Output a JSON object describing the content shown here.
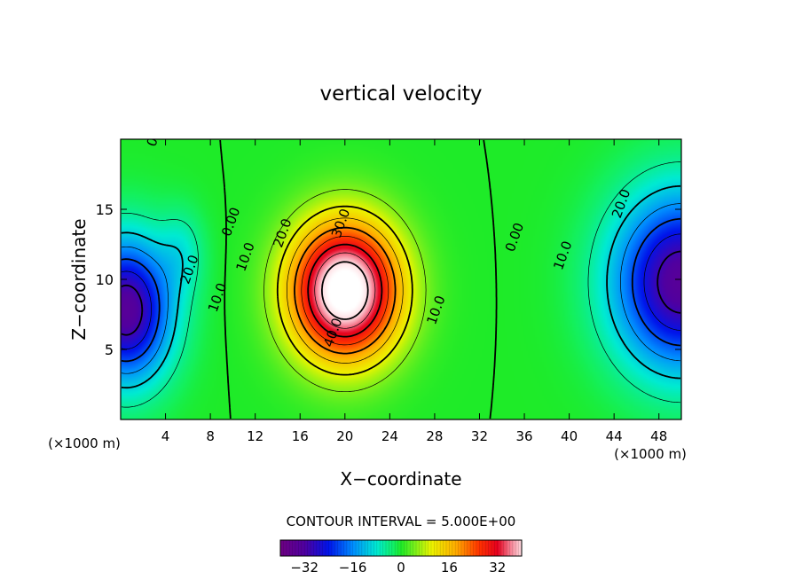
{
  "chart_data": {
    "type": "heatmap",
    "title": "vertical velocity",
    "xlabel": "X−coordinate",
    "ylabel": "Z−coordinate",
    "x_unit_left": "(×1000 m)",
    "x_unit_right": "(×1000 m)",
    "xlim": [
      0,
      50
    ],
    "ylim": [
      0,
      20
    ],
    "x_ticks": [
      "4",
      "8",
      "12",
      "16",
      "20",
      "24",
      "28",
      "32",
      "36",
      "40",
      "44",
      "48"
    ],
    "x_tick_values": [
      4,
      8,
      12,
      16,
      20,
      24,
      28,
      32,
      36,
      40,
      44,
      48
    ],
    "y_ticks": [
      "5",
      "10",
      "15"
    ],
    "y_tick_values": [
      5,
      10,
      15
    ],
    "contour_interval_text": "CONTOUR INTERVAL = 5.000E+00",
    "contour_interval": 5.0,
    "contour_labels": [
      {
        "text": "0.00",
        "x": 10.2,
        "y": 14.0
      },
      {
        "text": "10.0",
        "x": 11.5,
        "y": 11.5
      },
      {
        "text": "20.0",
        "x": 14.8,
        "y": 13.2
      },
      {
        "text": "30.0",
        "x": 20.0,
        "y": 13.9
      },
      {
        "text": "40.0",
        "x": 19.3,
        "y": 6.1
      },
      {
        "text": "10.0",
        "x": 28.5,
        "y": 7.7
      },
      {
        "text": "0.00",
        "x": 35.5,
        "y": 12.9
      },
      {
        "text": "10.0",
        "x": 39.8,
        "y": 11.6
      },
      {
        "text": "20.0",
        "x": 45.0,
        "y": 15.3
      },
      {
        "text": "20.0",
        "x": 6.5,
        "y": 10.6
      },
      {
        "text": "10.0",
        "x": 9.0,
        "y": 8.6
      },
      {
        "text": "0",
        "x": 3.2,
        "y": 19.7
      }
    ],
    "field": {
      "background": 0,
      "updrafts": [
        {
          "center": [
            20.0,
            9.2
          ],
          "sigma": [
            4.8,
            4.8
          ],
          "amplitude": 48
        }
      ],
      "downdrafts": [
        {
          "center": [
            0.5,
            7.8
          ],
          "sigma": [
            4.0,
            5.0
          ],
          "amplitude": -34
        },
        {
          "center": [
            5.5,
            12.0
          ],
          "sigma": [
            2.0,
            3.0
          ],
          "amplitude": -6
        },
        {
          "center": [
            50.0,
            9.8
          ],
          "sigma": [
            6.0,
            6.2
          ],
          "amplitude": -34
        }
      ]
    },
    "colorbar": {
      "tick_labels": [
        "−32",
        "−16",
        "0",
        "16",
        "32"
      ],
      "tick_values": [
        -32,
        -16,
        0,
        16,
        32
      ],
      "range": [
        -40,
        40
      ]
    }
  }
}
